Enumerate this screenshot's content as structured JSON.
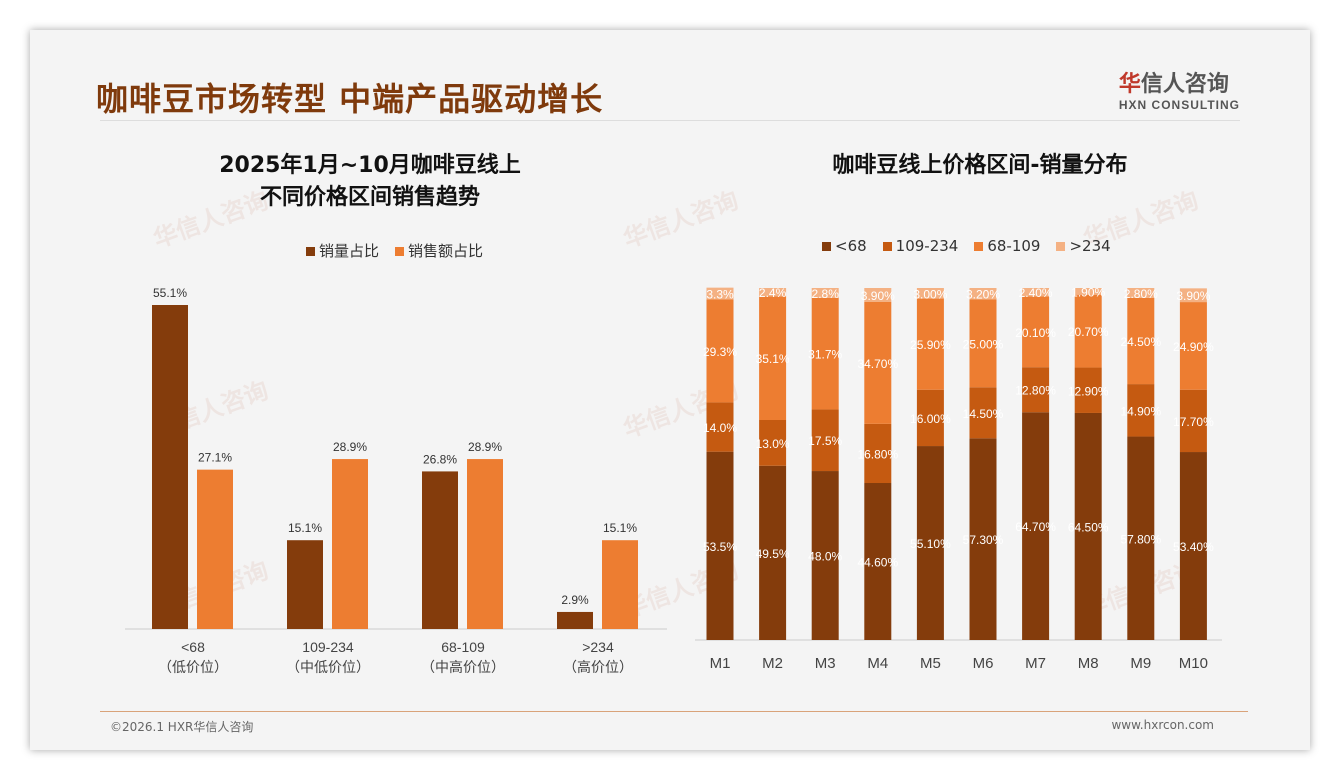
{
  "header": {
    "title": "咖啡豆市场转型 中端产品驱动增长",
    "logo_cn_mark": "华",
    "logo_cn": "信人咨询",
    "logo_en": "HXN CONSULTING"
  },
  "footer": {
    "copyright": "©2026.1 HXR华信人咨询",
    "website": "www.hxrcon.com"
  },
  "colors": {
    "dark": "#843c0c",
    "mid": "#c55a11",
    "orange": "#ed7d31",
    "light": "#f4b183",
    "title": "#7f3a0c"
  },
  "chart_data": [
    {
      "type": "bar",
      "title_line1": "2025年1月~10月咖啡豆线上",
      "title_line2": "不同价格区间销售趋势",
      "categories": [
        "<68",
        "109-234",
        "68-109",
        ">234"
      ],
      "category_sublabels": [
        "（低价位）",
        "（中低价位）",
        "（中高价位）",
        "（高价位）"
      ],
      "series": [
        {
          "name": "销量占比",
          "values": [
            55.1,
            15.1,
            26.8,
            2.9
          ],
          "labels": [
            "55.1%",
            "15.1%",
            "26.8%",
            "2.9%"
          ]
        },
        {
          "name": "销售额占比",
          "values": [
            27.1,
            28.9,
            28.9,
            15.1
          ],
          "labels": [
            "27.1%",
            "28.9%",
            "28.9%",
            "15.1%"
          ]
        }
      ],
      "ylim": [
        0,
        55.1
      ],
      "legend": "top"
    },
    {
      "type": "bar",
      "stacked": true,
      "title": "咖啡豆线上价格区间-销量分布",
      "categories": [
        "M1",
        "M2",
        "M3",
        "M4",
        "M5",
        "M6",
        "M7",
        "M8",
        "M9",
        "M10"
      ],
      "series": [
        {
          "name": "<68",
          "values": [
            53.5,
            49.5,
            48.0,
            44.6,
            55.1,
            57.3,
            64.7,
            64.5,
            57.8,
            53.4
          ],
          "labels": [
            "53.5%",
            "49.5%",
            "48.0%",
            "44.60%",
            "55.10%",
            "57.30%",
            "64.70%",
            "64.50%",
            "57.80%",
            "53.40%"
          ]
        },
        {
          "name": "109-234",
          "values": [
            14.0,
            13.0,
            17.5,
            16.8,
            16.0,
            14.5,
            12.8,
            12.9,
            14.9,
            17.7
          ],
          "labels": [
            "14.0%",
            "13.0%",
            "17.5%",
            "16.80%",
            "16.00%",
            "14.50%",
            "12.80%",
            "12.90%",
            "14.90%",
            "17.70%"
          ]
        },
        {
          "name": "68-109",
          "values": [
            29.3,
            35.1,
            31.7,
            34.7,
            25.9,
            25.0,
            20.1,
            20.7,
            24.5,
            24.9
          ],
          "labels": [
            "29.3%",
            "35.1%",
            "31.7%",
            "34.70%",
            "25.90%",
            "25.00%",
            "20.10%",
            "20.70%",
            "24.50%",
            "24.90%"
          ]
        },
        {
          "name": ">234",
          "values": [
            3.3,
            2.4,
            2.8,
            3.9,
            3.0,
            3.2,
            2.4,
            1.9,
            2.8,
            3.9
          ],
          "labels": [
            "3.3%",
            "2.4%",
            "2.8%",
            "3.90%",
            "3.00%",
            "3.20%",
            "2.40%",
            "1.90%",
            "2.80%",
            "3.90%"
          ]
        }
      ],
      "ylim": [
        0,
        100
      ],
      "legend": "top"
    }
  ]
}
